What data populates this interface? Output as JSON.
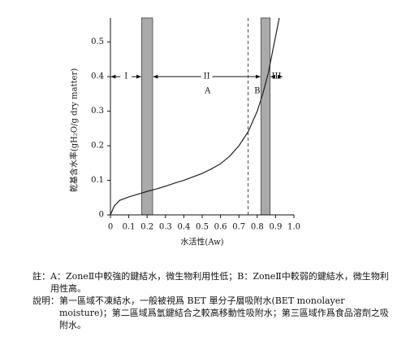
{
  "chart_data": {
    "type": "line",
    "x": [
      0,
      0.02,
      0.05,
      0.1,
      0.15,
      0.2,
      0.25,
      0.3,
      0.35,
      0.4,
      0.45,
      0.5,
      0.55,
      0.6,
      0.65,
      0.7,
      0.75,
      0.8,
      0.83,
      0.86,
      0.89,
      0.92
    ],
    "values": [
      0,
      0.025,
      0.042,
      0.052,
      0.06,
      0.068,
      0.075,
      0.083,
      0.092,
      0.1,
      0.11,
      0.12,
      0.133,
      0.148,
      0.17,
      0.2,
      0.24,
      0.3,
      0.35,
      0.41,
      0.49,
      0.57
    ],
    "color": "#222222",
    "xlim": [
      0,
      1
    ],
    "ylim": [
      0,
      0.57
    ],
    "xticks": [
      0,
      0.1,
      0.2,
      0.3,
      0.4,
      0.5,
      0.6,
      0.7,
      0.8,
      0.9,
      {
        "value": 1,
        "label": "1.0"
      }
    ],
    "yticks": [
      0,
      0.1,
      0.2,
      0.3,
      0.4,
      0.5
    ],
    "xlabel": "水活性(Aw)",
    "ylabel": "乾基含水率(gH₂O/g dry matter)",
    "shaded_regions": [
      [
        0.17,
        0.23
      ],
      [
        0.82,
        0.87
      ]
    ],
    "dashed_line_x": 0.75,
    "zones": [
      "I",
      "II",
      "III"
    ],
    "points": [
      "A",
      "B"
    ]
  },
  "notes": [
    {
      "label": "註：",
      "text": "A：ZoneⅡ中較強的鍵結水，微生物利用性低；B：ZoneⅡ中較弱的鍵結水，微生物利用性高。"
    },
    {
      "label": "說明：",
      "text": "第一區域不凍結水，一般被視爲 BET 單分子層吸附水(BET monolayer moisture)；第二區域爲氫鍵結合之較高移動性吸附水；第三區域作爲食品溶劑之吸附水。"
    }
  ]
}
